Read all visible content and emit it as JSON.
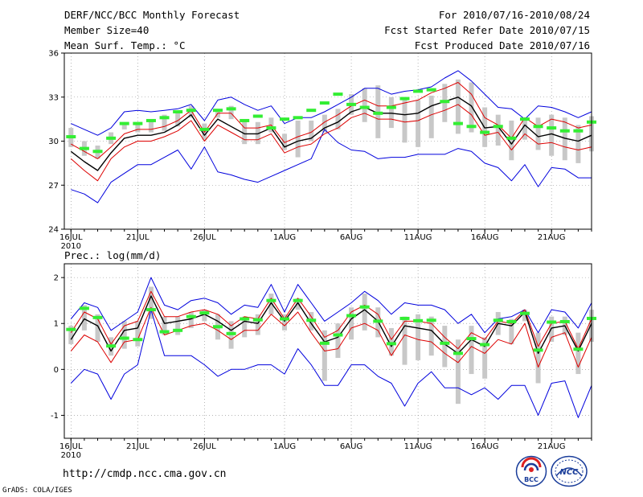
{
  "header": {
    "title": "DERF/NCC/BCC Monthly Forecast",
    "member_size": "Member Size=40",
    "variable_top": "Mean Surf. Temp.: °C",
    "forecast_period": "For 2010/07/16-2010/08/24",
    "started_date": "Fcst Started Refer Date 2010/07/15",
    "produced_date": "Fcst Produced Date 2010/07/16"
  },
  "lower_panel_title": "Prec.: log(mm/d)",
  "footer": {
    "url": "http://cmdp.ncc.cma.gov.cn",
    "credit": "GrADS: COLA/IGES",
    "logo_left_text": "BCC",
    "logo_right_text": "NCC"
  },
  "colors": {
    "max_min": "#0000dd",
    "spread": "#dd0000",
    "mean": "#000000",
    "box": "#c8c8c8",
    "median": "#33ee33"
  },
  "chart_data": [
    {
      "type": "line",
      "title": "Mean Surf. Temp.: °C",
      "x_tick_labels": [
        "16JUL",
        "21JUL",
        "26JUL",
        "1AUG",
        "6AUG",
        "11AUG",
        "16AUG",
        "21AUG"
      ],
      "x_tick_days": [
        1,
        6,
        11,
        17,
        22,
        27,
        32,
        37
      ],
      "x_sub_label": "2010",
      "days": [
        1,
        2,
        3,
        4,
        5,
        6,
        7,
        8,
        9,
        10,
        11,
        12,
        13,
        14,
        15,
        16,
        17,
        18,
        19,
        20,
        21,
        22,
        23,
        24,
        25,
        26,
        27,
        28,
        29,
        30,
        31,
        32,
        33,
        34,
        35,
        36,
        37,
        38,
        39,
        40
      ],
      "ylim": [
        24,
        36
      ],
      "yticks": [
        24,
        27,
        30,
        33,
        36
      ],
      "series": [
        {
          "name": "max",
          "values": [
            31.2,
            30.8,
            30.4,
            30.9,
            32.0,
            32.1,
            32.0,
            32.1,
            32.2,
            32.5,
            31.4,
            32.8,
            33.0,
            32.5,
            32.1,
            32.4,
            31.2,
            31.6,
            31.6,
            32.0,
            32.5,
            33.0,
            33.6,
            33.6,
            33.2,
            33.4,
            33.5,
            33.7,
            34.3,
            34.8,
            34.1,
            33.2,
            32.3,
            32.2,
            31.5,
            32.4,
            32.3,
            32.0,
            31.6,
            32.0
          ]
        },
        {
          "name": "upper",
          "values": [
            29.8,
            29.3,
            28.8,
            29.6,
            30.5,
            30.8,
            30.8,
            31.0,
            31.4,
            32.1,
            30.6,
            31.9,
            31.9,
            30.9,
            30.9,
            31.1,
            29.9,
            30.3,
            30.6,
            31.3,
            31.8,
            32.4,
            32.8,
            32.4,
            32.4,
            32.6,
            32.8,
            33.3,
            33.6,
            34.0,
            33.2,
            31.6,
            31.1,
            30.2,
            31.6,
            31.0,
            31.5,
            31.3,
            30.9,
            31.1
          ]
        },
        {
          "name": "mean",
          "values": [
            29.3,
            28.6,
            28.0,
            29.2,
            30.2,
            30.4,
            30.4,
            30.6,
            31.1,
            31.8,
            30.4,
            31.5,
            31.0,
            30.5,
            30.5,
            30.9,
            29.6,
            30.0,
            30.2,
            30.9,
            31.3,
            32.0,
            32.3,
            31.9,
            31.9,
            31.8,
            31.9,
            32.4,
            32.7,
            33.0,
            32.4,
            30.9,
            31.0,
            29.8,
            31.1,
            30.3,
            30.5,
            30.2,
            30.0,
            30.4
          ]
        },
        {
          "name": "lower",
          "values": [
            28.8,
            28.0,
            27.3,
            28.8,
            29.6,
            30.0,
            30.0,
            30.3,
            30.7,
            31.4,
            30.0,
            31.1,
            30.6,
            30.1,
            30.1,
            30.5,
            29.2,
            29.6,
            29.8,
            30.5,
            30.9,
            31.6,
            31.9,
            31.5,
            31.5,
            31.3,
            31.4,
            31.8,
            32.1,
            32.5,
            31.8,
            30.4,
            30.6,
            29.4,
            30.5,
            29.8,
            29.9,
            29.6,
            29.4,
            29.6
          ]
        },
        {
          "name": "min",
          "values": [
            26.7,
            26.4,
            25.8,
            27.2,
            27.8,
            28.4,
            28.4,
            28.9,
            29.4,
            28.1,
            29.6,
            27.9,
            27.7,
            27.4,
            27.2,
            27.6,
            28.0,
            28.4,
            28.8,
            30.8,
            29.9,
            29.4,
            29.3,
            28.8,
            28.9,
            28.9,
            29.1,
            29.1,
            29.1,
            29.5,
            29.3,
            28.5,
            28.2,
            27.3,
            28.4,
            26.9,
            28.2,
            28.1,
            27.5,
            27.5
          ]
        },
        {
          "name": "box_high",
          "values": [
            30.9,
            30.0,
            29.7,
            30.6,
            31.2,
            31.2,
            31.5,
            31.8,
            32.0,
            32.4,
            31.2,
            32.2,
            32.4,
            31.5,
            31.3,
            31.6,
            30.5,
            31.4,
            31.4,
            31.8,
            32.2,
            33.2,
            33.6,
            33.8,
            33.0,
            33.0,
            32.8,
            33.1,
            33.9,
            34.2,
            34.0,
            32.3,
            31.8,
            31.4,
            31.6,
            31.6,
            31.8,
            31.6,
            31.1,
            31.7
          ]
        },
        {
          "name": "box_low",
          "values": [
            29.6,
            29.0,
            28.8,
            29.8,
            30.8,
            30.6,
            30.6,
            30.7,
            31.0,
            31.6,
            30.1,
            31.6,
            31.5,
            29.8,
            29.8,
            30.6,
            29.4,
            28.9,
            30.0,
            30.6,
            30.8,
            31.8,
            31.3,
            30.2,
            30.9,
            29.9,
            29.6,
            30.2,
            31.3,
            30.5,
            30.6,
            29.6,
            29.7,
            28.7,
            30.1,
            29.4,
            29.0,
            28.7,
            28.5,
            29.3
          ]
        },
        {
          "name": "median",
          "values": [
            30.3,
            29.5,
            29.3,
            30.2,
            31.2,
            31.2,
            31.4,
            31.6,
            32.0,
            32.1,
            30.8,
            32.1,
            32.2,
            31.4,
            31.7,
            30.9,
            31.5,
            31.6,
            32.1,
            32.6,
            33.2,
            32.5,
            32.3,
            31.9,
            32.3,
            32.9,
            33.4,
            33.5,
            32.7,
            31.2,
            31.0,
            30.6,
            31.0,
            30.2,
            31.5,
            31.0,
            30.9,
            30.7,
            30.7,
            31.3
          ]
        }
      ]
    },
    {
      "type": "line",
      "title": "Prec.: log(mm/d)",
      "x_tick_labels": [
        "16JUL",
        "21JUL",
        "26JUL",
        "1AUG",
        "6AUG",
        "11AUG",
        "16AUG",
        "21AUG"
      ],
      "x_tick_days": [
        1,
        6,
        11,
        17,
        22,
        27,
        32,
        37
      ],
      "x_sub_label": "2010",
      "days": [
        1,
        2,
        3,
        4,
        5,
        6,
        7,
        8,
        9,
        10,
        11,
        12,
        13,
        14,
        15,
        16,
        17,
        18,
        19,
        20,
        21,
        22,
        23,
        24,
        25,
        26,
        27,
        28,
        29,
        30,
        31,
        32,
        33,
        34,
        35,
        36,
        37,
        38,
        39,
        40
      ],
      "ylim": [
        -1.5,
        2.3
      ],
      "yticks": [
        -1,
        0,
        1,
        2
      ],
      "series": [
        {
          "name": "max",
          "values": [
            1.1,
            1.45,
            1.35,
            0.85,
            1.05,
            1.25,
            2.0,
            1.4,
            1.3,
            1.5,
            1.55,
            1.45,
            1.2,
            1.4,
            1.35,
            1.85,
            1.25,
            1.85,
            1.45,
            1.05,
            1.25,
            1.45,
            1.7,
            1.5,
            1.2,
            1.45,
            1.4,
            1.4,
            1.3,
            1.0,
            1.2,
            0.8,
            1.1,
            1.15,
            1.3,
            0.8,
            1.3,
            1.25,
            0.9,
            1.45
          ]
        },
        {
          "name": "upper",
          "values": [
            0.8,
            1.25,
            1.1,
            0.55,
            0.95,
            1.05,
            1.7,
            1.15,
            1.15,
            1.25,
            1.3,
            1.2,
            0.95,
            1.15,
            1.1,
            1.55,
            1.1,
            1.55,
            1.15,
            0.7,
            0.85,
            1.25,
            1.4,
            1.2,
            0.65,
            1.05,
            1.05,
            1.0,
            0.7,
            0.45,
            0.8,
            0.65,
            1.05,
            1.0,
            1.3,
            0.5,
            1.0,
            1.05,
            0.45,
            1.1
          ]
        },
        {
          "name": "mean",
          "values": [
            0.65,
            1.1,
            0.95,
            0.4,
            0.85,
            0.9,
            1.6,
            1.0,
            1.05,
            1.1,
            1.2,
            1.05,
            0.85,
            1.05,
            1.0,
            1.45,
            1.05,
            1.45,
            1.0,
            0.6,
            0.7,
            1.1,
            1.3,
            1.05,
            0.5,
            0.95,
            0.9,
            0.85,
            0.55,
            0.35,
            0.65,
            0.5,
            1.0,
            0.95,
            1.25,
            0.35,
            0.9,
            0.95,
            0.4,
            1.0
          ]
        },
        {
          "name": "lower",
          "values": [
            0.4,
            0.75,
            0.6,
            0.15,
            0.6,
            0.65,
            1.35,
            0.75,
            0.85,
            0.95,
            1.0,
            0.85,
            0.65,
            0.85,
            0.85,
            1.2,
            0.95,
            1.25,
            0.8,
            0.4,
            0.45,
            0.9,
            1.0,
            0.85,
            0.3,
            0.75,
            0.65,
            0.6,
            0.35,
            0.15,
            0.5,
            0.35,
            0.65,
            0.55,
            1.0,
            0.05,
            0.7,
            0.8,
            0.05,
            0.7
          ]
        },
        {
          "name": "min",
          "values": [
            -0.3,
            0.0,
            -0.1,
            -0.65,
            -0.1,
            0.1,
            1.3,
            0.3,
            0.3,
            0.3,
            0.1,
            -0.15,
            0.0,
            0.0,
            0.1,
            0.1,
            -0.1,
            0.45,
            0.1,
            -0.35,
            -0.35,
            0.1,
            0.1,
            -0.15,
            -0.3,
            -0.8,
            -0.3,
            -0.05,
            -0.4,
            -0.4,
            -0.55,
            -0.4,
            -0.65,
            -0.35,
            -0.35,
            -1.0,
            -0.3,
            -0.25,
            -1.05,
            -0.35
          ]
        },
        {
          "name": "box_high",
          "values": [
            0.95,
            1.4,
            1.2,
            0.7,
            1.05,
            1.05,
            1.8,
            1.15,
            1.15,
            1.25,
            1.3,
            1.2,
            1.05,
            1.15,
            1.2,
            1.65,
            1.2,
            1.55,
            1.25,
            0.85,
            1.0,
            1.35,
            1.65,
            1.35,
            0.9,
            1.15,
            1.2,
            1.15,
            0.95,
            0.65,
            0.95,
            0.7,
            1.25,
            1.1,
            1.3,
            0.8,
            1.15,
            1.15,
            0.8,
            1.3
          ]
        },
        {
          "name": "box_low",
          "values": [
            0.55,
            0.85,
            0.6,
            0.3,
            0.45,
            0.5,
            1.1,
            0.75,
            0.75,
            0.9,
            1.05,
            0.65,
            0.45,
            0.7,
            0.75,
            1.2,
            0.85,
            1.3,
            0.85,
            -0.25,
            0.25,
            0.65,
            0.85,
            0.7,
            0.3,
            0.1,
            0.2,
            0.3,
            0.05,
            -0.75,
            -0.1,
            -0.2,
            0.75,
            0.55,
            1.05,
            -0.3,
            0.6,
            0.75,
            -0.1,
            0.6
          ]
        },
        {
          "name": "median",
          "values": [
            0.87,
            1.33,
            1.13,
            0.51,
            0.68,
            0.65,
            1.3,
            0.82,
            0.85,
            1.15,
            1.23,
            0.93,
            0.78,
            1.1,
            1.08,
            1.5,
            1.1,
            1.5,
            1.07,
            0.57,
            0.75,
            1.17,
            1.36,
            1.05,
            0.56,
            1.11,
            1.06,
            1.07,
            0.57,
            0.35,
            0.67,
            0.54,
            1.07,
            1.04,
            1.22,
            0.42,
            1.03,
            1.04,
            0.44,
            1.11
          ]
        }
      ]
    }
  ]
}
